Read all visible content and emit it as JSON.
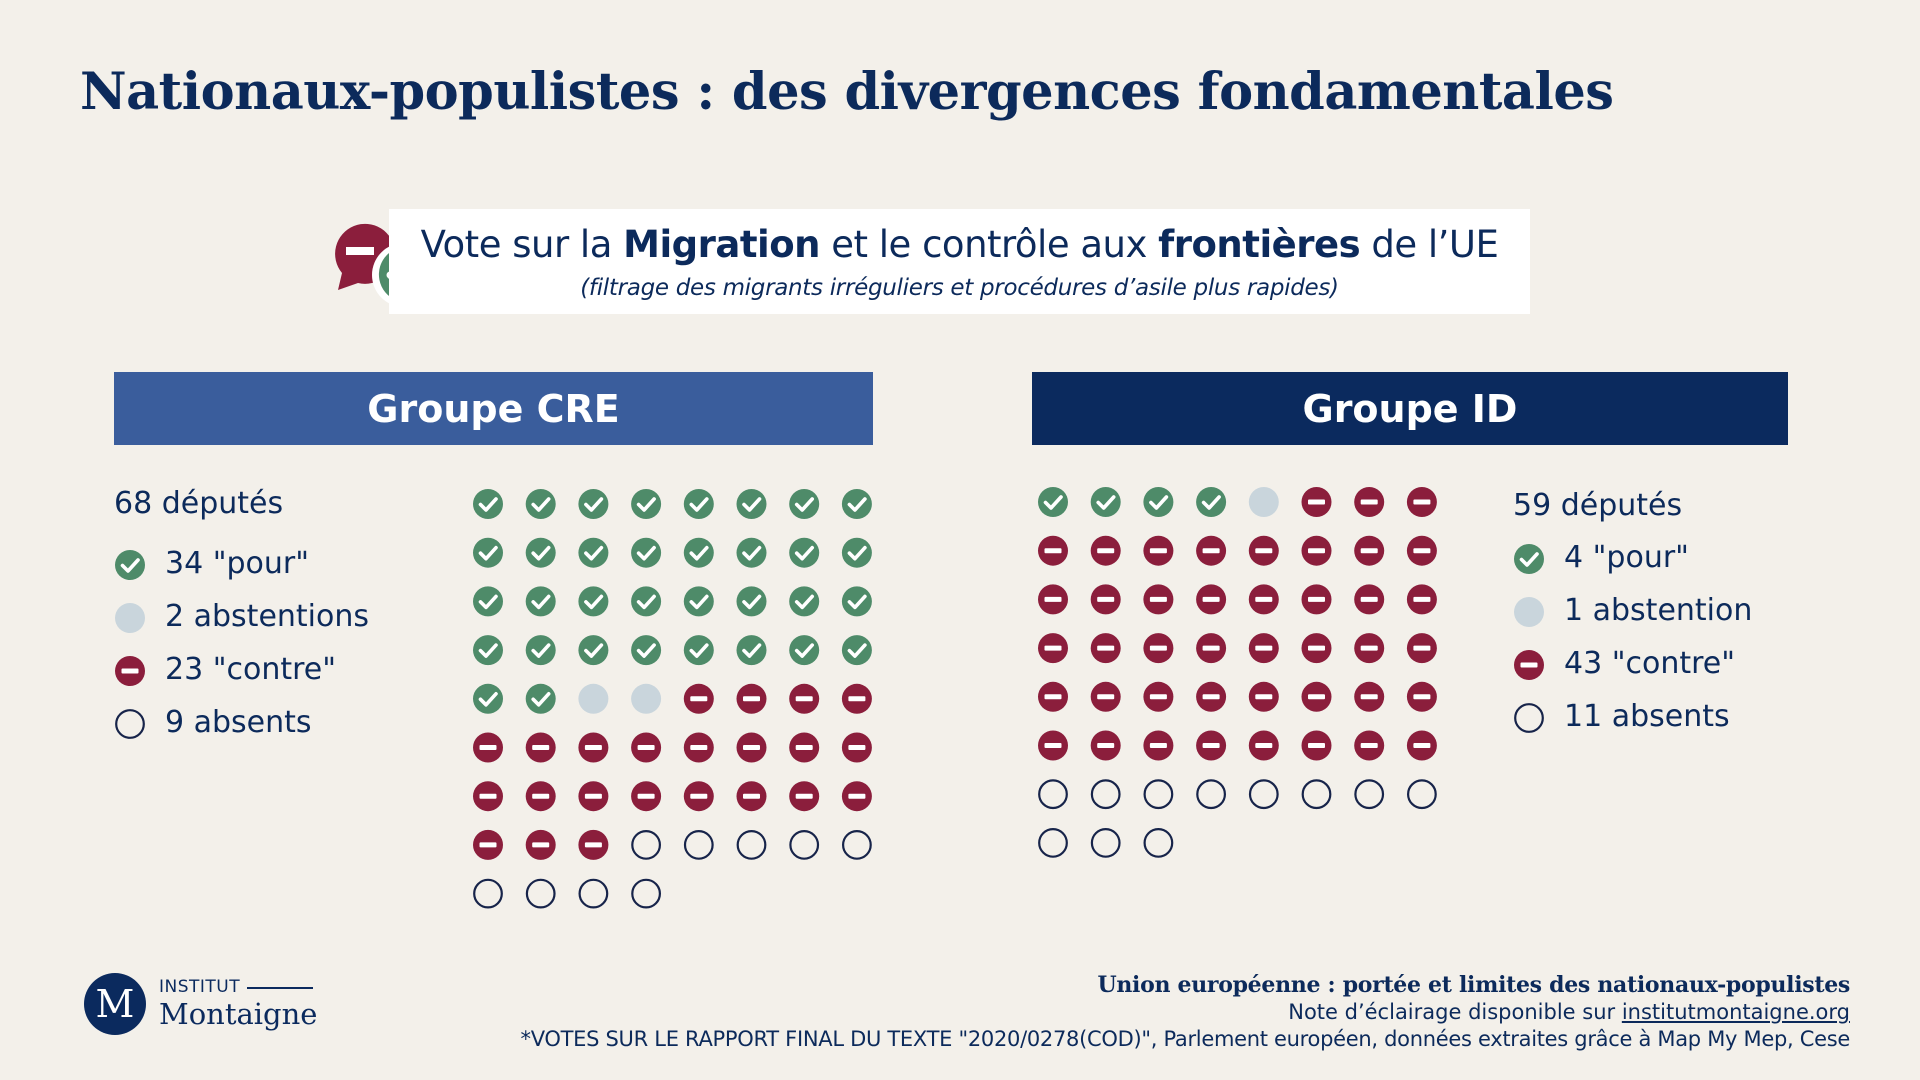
{
  "title": "Nationaux-populistes : des divergences fondamentales",
  "vote": {
    "prefix": "Vote sur la ",
    "bold1": "Migration",
    "mid": " et le contrôle aux ",
    "bold2": "frontières",
    "suffix": " de l’UE",
    "subtitle": "(filtrage des migrants irréguliers et procédures d’asile plus rapides)"
  },
  "colors": {
    "pour": "#4e8b69",
    "abstention": "#c9d5dc",
    "contre": "#8b1e3c",
    "absent_stroke": "#17244a",
    "cre": "#3a5d9c",
    "id": "#0b2a5e"
  },
  "chart_data": [
    {
      "type": "waffle",
      "group": "Groupe CRE",
      "total_label": "68 députés",
      "columns": 8,
      "categories": [
        "pour",
        "abstention",
        "contre",
        "absent"
      ],
      "values": [
        34,
        2,
        23,
        9
      ],
      "legend": [
        "34 \"pour\"",
        "2 abstentions",
        "23 \"contre\"",
        "9 absents"
      ]
    },
    {
      "type": "waffle",
      "group": "Groupe ID",
      "total_label": "59 députés",
      "columns": 8,
      "categories": [
        "pour",
        "abstention",
        "contre",
        "absent"
      ],
      "values": [
        4,
        1,
        43,
        11
      ],
      "legend": [
        "4 \"pour\"",
        "1 abstention",
        "43 \"contre\"",
        "11 absents"
      ]
    }
  ],
  "footer": {
    "logo_letter": "M",
    "logo_institut": "INSTITUT",
    "logo_name": "Montaigne",
    "line1": "Union européenne : portée et limites des nationaux-populistes",
    "line2_prefix": "Note d’éclairage disponible sur ",
    "line2_link": "institutmontaigne.org",
    "line3": "*VOTES SUR LE RAPPORT FINAL DU TEXTE \"2020/0278(COD)\", Parlement européen, données extraites grâce à Map My Mep, Cese"
  }
}
